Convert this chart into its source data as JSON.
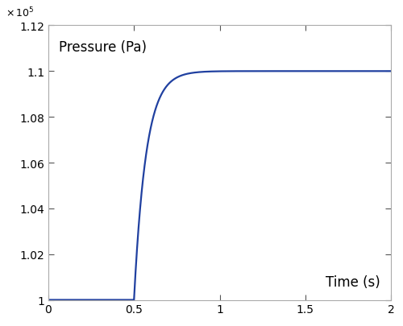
{
  "ylabel_text": "Pressure (Pa)",
  "xlabel_text": "Time (s)",
  "line_color": "#2040a0",
  "line_width": 1.6,
  "xlim": [
    0,
    2
  ],
  "ylim": [
    100000.0,
    112000.0
  ],
  "yticks": [
    100000.0,
    102000.0,
    104000.0,
    106000.0,
    108000.0,
    110000.0,
    112000.0
  ],
  "xticks": [
    0,
    0.5,
    1.0,
    1.5,
    2.0
  ],
  "xtick_labels": [
    "0",
    "0.5",
    "1",
    "1.5",
    "2"
  ],
  "ytick_labels": [
    "1",
    "1.02",
    "1.04",
    "1.06",
    "1.08",
    "1.1",
    "1.12"
  ],
  "p_initial": 100000.0,
  "p_final": 110000.0,
  "t_step": 0.5,
  "tau": 0.07,
  "bg_color": "#ffffff",
  "spine_color": "#aaaaaa",
  "tick_color": "#555555",
  "label_fontsize": 12,
  "tick_fontsize": 10
}
